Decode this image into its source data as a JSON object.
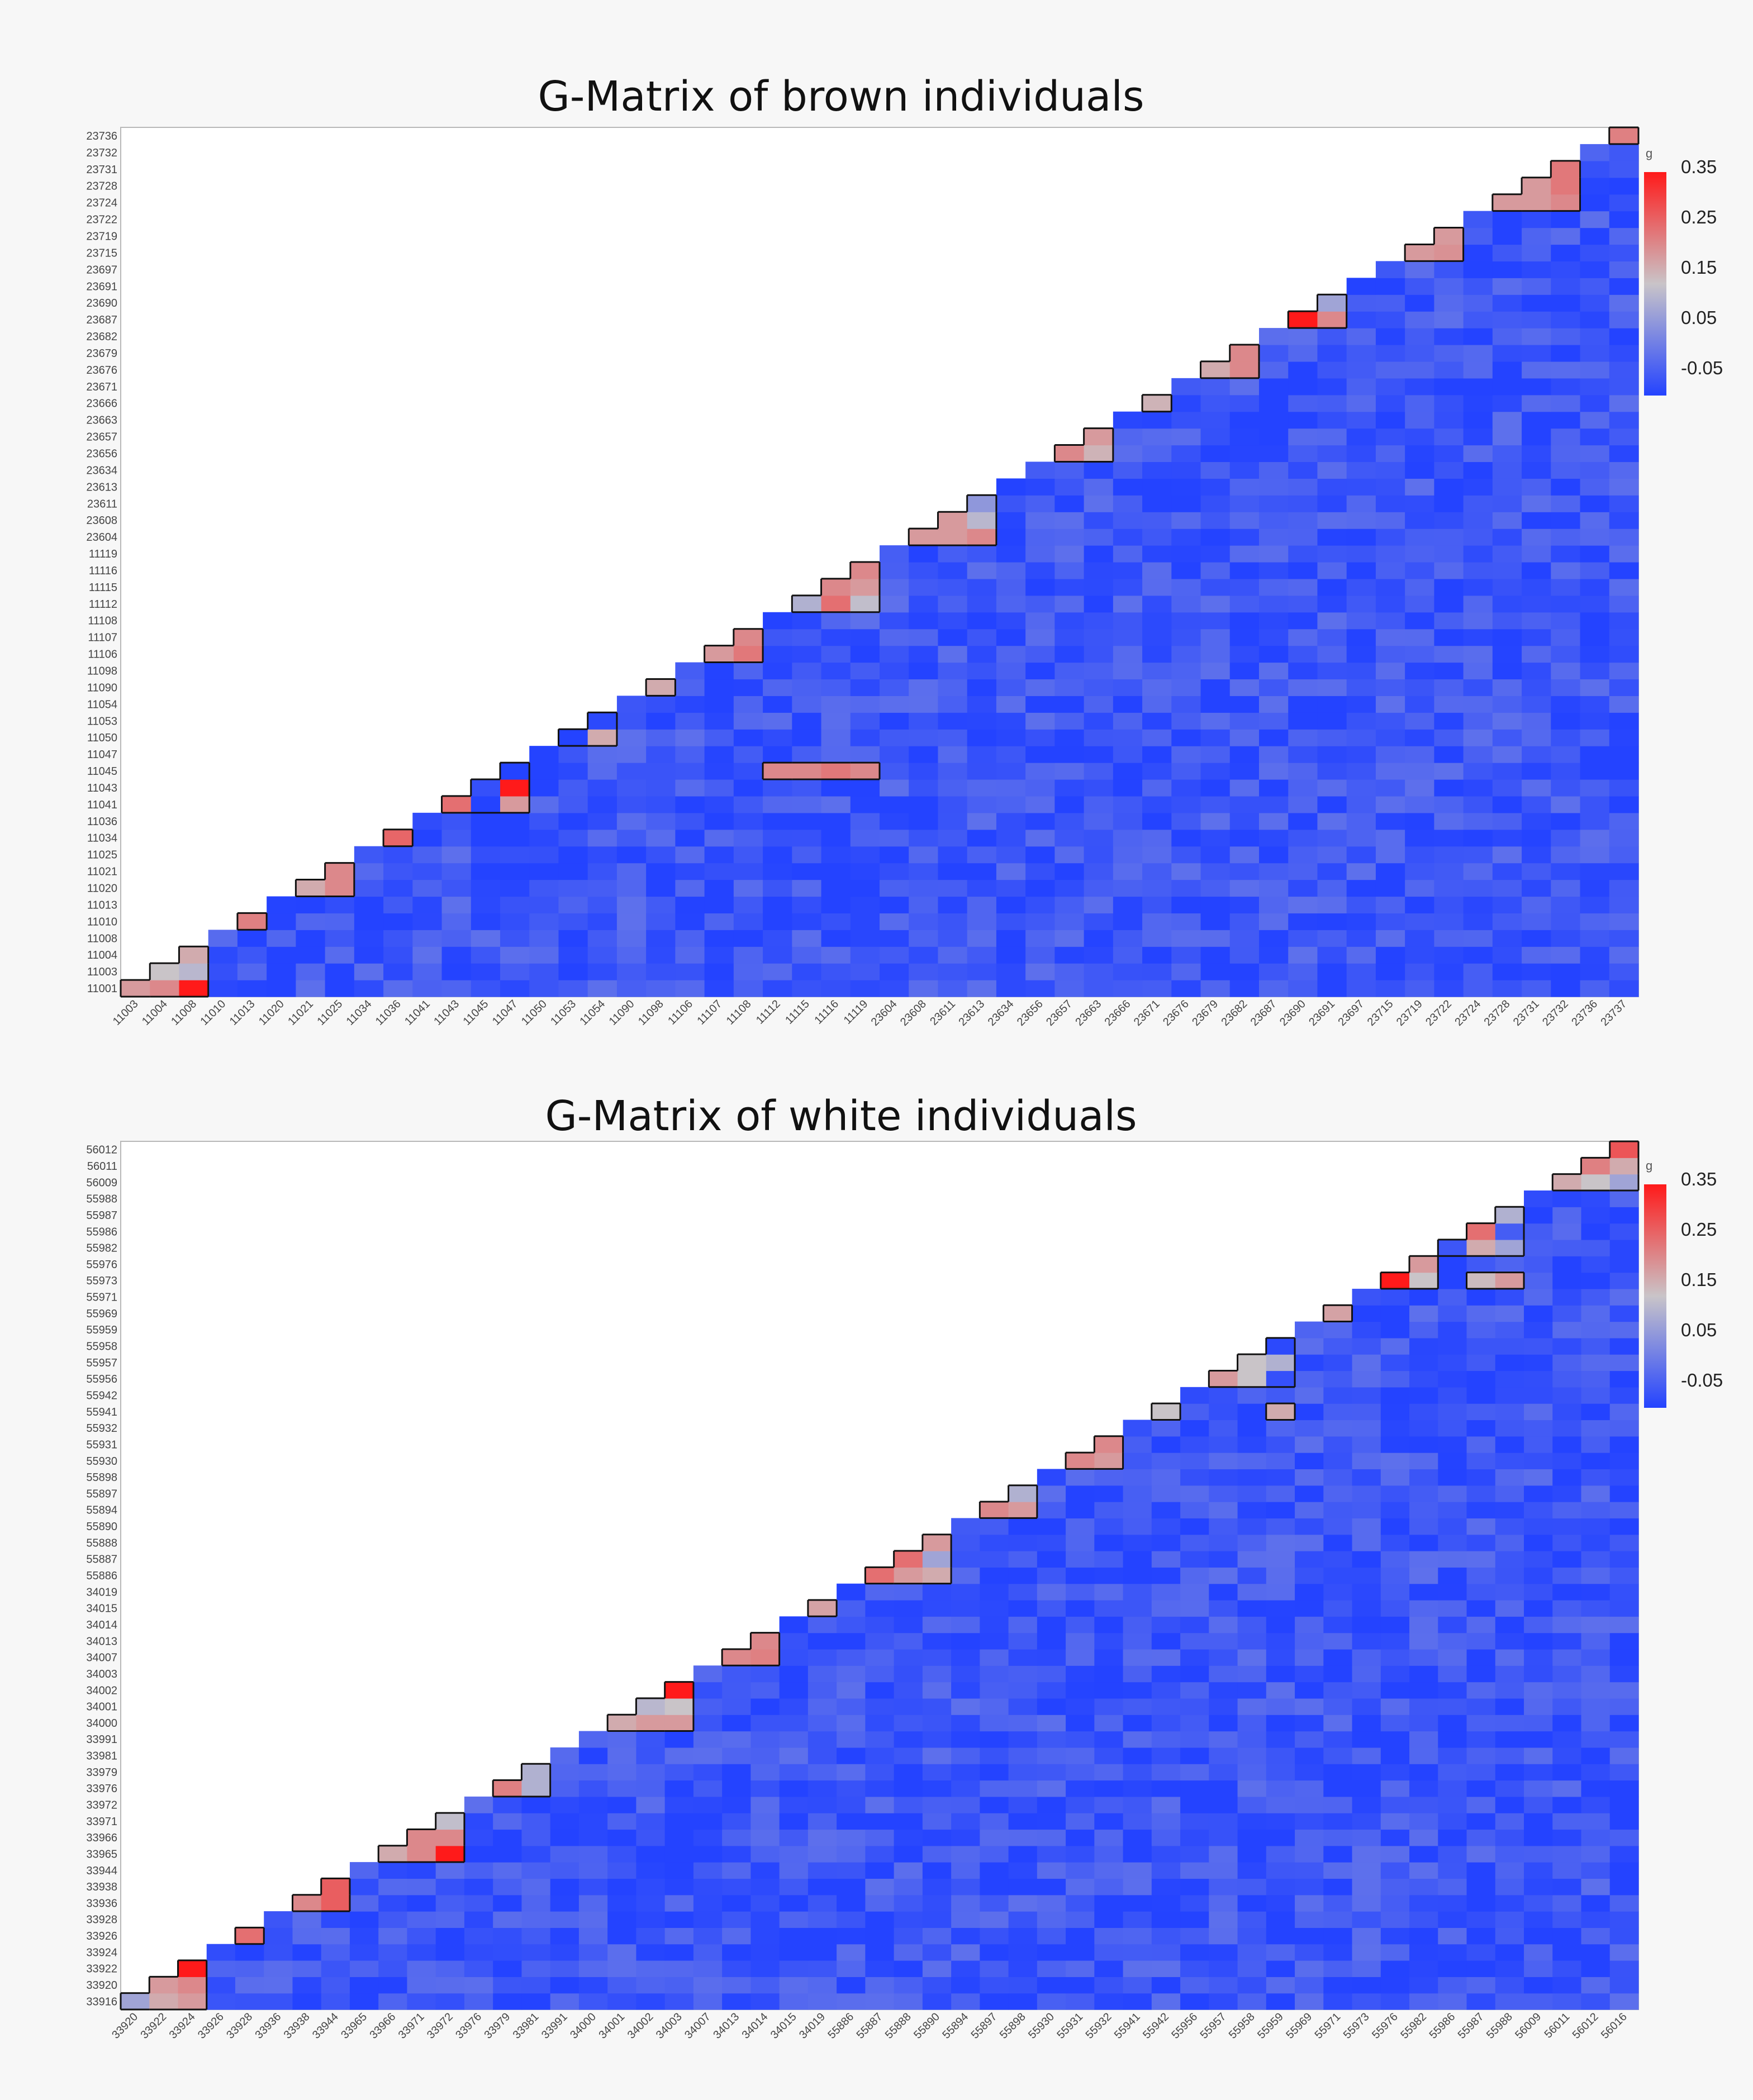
{
  "panels": [
    {
      "title": "G-Matrix of brown individuals",
      "legend": {
        "label": "g",
        "ticks": [
          "0.35",
          "0.25",
          "0.15",
          "0.05",
          "-0.05"
        ]
      },
      "y_labels": [
        "11001",
        "11003",
        "11004",
        "11008",
        "11010",
        "11013",
        "11020",
        "11021",
        "11025",
        "11034",
        "11036",
        "11041",
        "11043",
        "11045",
        "11047",
        "11050",
        "11053",
        "11054",
        "11090",
        "11098",
        "11106",
        "11107",
        "11108",
        "11112",
        "11115",
        "11116",
        "11119",
        "23604",
        "23608",
        "23611",
        "23613",
        "23634",
        "23656",
        "23657",
        "23663",
        "23666",
        "23671",
        "23676",
        "23679",
        "23682",
        "23687",
        "23690",
        "23691",
        "23697",
        "23715",
        "23719",
        "23722",
        "23724",
        "23728",
        "23731",
        "23732",
        "23736"
      ],
      "x_labels": [
        "11003",
        "11004",
        "11008",
        "11010",
        "11013",
        "11020",
        "11021",
        "11025",
        "11034",
        "11036",
        "11041",
        "11043",
        "11045",
        "11047",
        "11050",
        "11053",
        "11054",
        "11090",
        "11098",
        "11106",
        "11107",
        "11108",
        "11112",
        "11115",
        "11116",
        "11119",
        "23604",
        "23608",
        "23611",
        "23613",
        "23634",
        "23656",
        "23657",
        "23663",
        "23666",
        "23671",
        "23676",
        "23679",
        "23682",
        "23687",
        "23690",
        "23691",
        "23697",
        "23715",
        "23719",
        "23722",
        "23724",
        "23728",
        "23731",
        "23732",
        "23736",
        "23737"
      ]
    },
    {
      "title": "G-Matrix of white individuals",
      "legend": {
        "label": "g",
        "ticks": [
          "0.35",
          "0.25",
          "0.15",
          "0.05",
          "-0.05"
        ]
      },
      "y_labels": [
        "33916",
        "33920",
        "33922",
        "33924",
        "33926",
        "33928",
        "33936",
        "33938",
        "33944",
        "33965",
        "33966",
        "33971",
        "33972",
        "33976",
        "33979",
        "33981",
        "33991",
        "34000",
        "34001",
        "34002",
        "34003",
        "34007",
        "34013",
        "34014",
        "34015",
        "34019",
        "55886",
        "55887",
        "55888",
        "55890",
        "55894",
        "55897",
        "55898",
        "55930",
        "55931",
        "55932",
        "55941",
        "55942",
        "55956",
        "55957",
        "55958",
        "55959",
        "55969",
        "55971",
        "55973",
        "55976",
        "55982",
        "55986",
        "55987",
        "55988",
        "56009",
        "56011",
        "56012"
      ],
      "x_labels": [
        "33920",
        "33922",
        "33924",
        "33926",
        "33928",
        "33936",
        "33938",
        "33944",
        "33965",
        "33966",
        "33971",
        "33972",
        "33976",
        "33979",
        "33981",
        "33991",
        "34000",
        "34001",
        "34002",
        "34003",
        "34007",
        "34013",
        "34014",
        "34015",
        "34019",
        "55886",
        "55887",
        "55888",
        "55890",
        "55894",
        "55897",
        "55898",
        "55930",
        "55931",
        "55932",
        "55941",
        "55942",
        "55956",
        "55957",
        "55958",
        "55959",
        "55969",
        "55971",
        "55973",
        "55976",
        "55982",
        "55986",
        "55987",
        "55988",
        "56009",
        "56011",
        "56012",
        "56016"
      ]
    }
  ],
  "chart_data": [
    {
      "type": "heatmap",
      "title": "G-Matrix of brown individuals",
      "value_label": "g",
      "color_scale": {
        "min": -0.05,
        "max": 0.35,
        "colors": [
          "#2443ff",
          "#c9c4c8",
          "#ff1a1a"
        ]
      },
      "background_value": -0.03,
      "highlighted_cells": [
        {
          "x": "11003",
          "y": "11001",
          "v": 0.2
        },
        {
          "x": "11004",
          "y": "11001",
          "v": 0.22
        },
        {
          "x": "11008",
          "y": "11001",
          "v": 0.35
        },
        {
          "x": "11004",
          "y": "11003",
          "v": 0.15
        },
        {
          "x": "11008",
          "y": "11003",
          "v": 0.13
        },
        {
          "x": "11008",
          "y": "11004",
          "v": 0.18
        },
        {
          "x": "11013",
          "y": "11010",
          "v": 0.23
        },
        {
          "x": "11021",
          "y": "11020",
          "v": 0.18
        },
        {
          "x": "11025",
          "y": "11020",
          "v": 0.22
        },
        {
          "x": "11025",
          "y": "11021",
          "v": 0.22
        },
        {
          "x": "11036",
          "y": "11034",
          "v": 0.26
        },
        {
          "x": "11043",
          "y": "11041",
          "v": 0.25
        },
        {
          "x": "11045",
          "y": "11041",
          "v": -0.05
        },
        {
          "x": "11047",
          "y": "11041",
          "v": 0.2
        },
        {
          "x": "11045",
          "y": "11043",
          "v": -0.03
        },
        {
          "x": "11047",
          "y": "11043",
          "v": 0.35
        },
        {
          "x": "11047",
          "y": "11045",
          "v": -0.06
        },
        {
          "x": "11053",
          "y": "11050",
          "v": -0.05
        },
        {
          "x": "11054",
          "y": "11050",
          "v": 0.18
        },
        {
          "x": "11054",
          "y": "11053",
          "v": -0.04
        },
        {
          "x": "11098",
          "y": "11090",
          "v": 0.18
        },
        {
          "x": "11107",
          "y": "11106",
          "v": 0.2
        },
        {
          "x": "11108",
          "y": "11106",
          "v": 0.24
        },
        {
          "x": "11108",
          "y": "11107",
          "v": 0.22
        },
        {
          "x": "11115",
          "y": "11112",
          "v": 0.12
        },
        {
          "x": "11116",
          "y": "11112",
          "v": 0.25
        },
        {
          "x": "11119",
          "y": "11112",
          "v": 0.14
        },
        {
          "x": "11116",
          "y": "11115",
          "v": 0.22
        },
        {
          "x": "11119",
          "y": "11115",
          "v": 0.2
        },
        {
          "x": "11119",
          "y": "11116",
          "v": 0.22
        },
        {
          "x": "23608",
          "y": "23604",
          "v": 0.2
        },
        {
          "x": "23611",
          "y": "23604",
          "v": 0.2
        },
        {
          "x": "23613",
          "y": "23604",
          "v": 0.22
        },
        {
          "x": "23611",
          "y": "23608",
          "v": 0.2
        },
        {
          "x": "23613",
          "y": "23608",
          "v": 0.13
        },
        {
          "x": "23613",
          "y": "23611",
          "v": 0.08
        },
        {
          "x": "23657",
          "y": "23656",
          "v": 0.22
        },
        {
          "x": "23663",
          "y": "23656",
          "v": 0.17
        },
        {
          "x": "23663",
          "y": "23657",
          "v": 0.2
        },
        {
          "x": "23671",
          "y": "23666",
          "v": 0.17
        },
        {
          "x": "23679",
          "y": "23676",
          "v": 0.18
        },
        {
          "x": "23682",
          "y": "23676",
          "v": 0.22
        },
        {
          "x": "23682",
          "y": "23679",
          "v": 0.22
        },
        {
          "x": "23690",
          "y": "23687",
          "v": 0.37
        },
        {
          "x": "23691",
          "y": "23687",
          "v": 0.22
        },
        {
          "x": "23691",
          "y": "23690",
          "v": 0.1
        },
        {
          "x": "23719",
          "y": "23715",
          "v": 0.2
        },
        {
          "x": "23722",
          "y": "23715",
          "v": 0.21
        },
        {
          "x": "23722",
          "y": "23719",
          "v": 0.2
        },
        {
          "x": "23728",
          "y": "23724",
          "v": 0.2
        },
        {
          "x": "23731",
          "y": "23724",
          "v": 0.2
        },
        {
          "x": "23732",
          "y": "23724",
          "v": 0.22
        },
        {
          "x": "23731",
          "y": "23728",
          "v": 0.2
        },
        {
          "x": "23732",
          "y": "23728",
          "v": 0.24
        },
        {
          "x": "23732",
          "y": "23731",
          "v": 0.24
        },
        {
          "x": "23737",
          "y": "23736",
          "v": 0.23
        },
        {
          "x": "11112",
          "y": "11045",
          "v": 0.22
        },
        {
          "x": "11115",
          "y": "11045",
          "v": 0.22
        },
        {
          "x": "11116",
          "y": "11045",
          "v": 0.24
        },
        {
          "x": "11119",
          "y": "11045",
          "v": 0.22
        }
      ]
    },
    {
      "type": "heatmap",
      "title": "G-Matrix of white individuals",
      "value_label": "g",
      "color_scale": {
        "min": -0.05,
        "max": 0.35,
        "colors": [
          "#2443ff",
          "#c9c4c8",
          "#ff1a1a"
        ]
      },
      "background_value": -0.03,
      "highlighted_cells": [
        {
          "x": "33920",
          "y": "33916",
          "v": 0.1
        },
        {
          "x": "33922",
          "y": "33916",
          "v": 0.18
        },
        {
          "x": "33924",
          "y": "33916",
          "v": 0.2
        },
        {
          "x": "33922",
          "y": "33920",
          "v": 0.2
        },
        {
          "x": "33924",
          "y": "33920",
          "v": 0.22
        },
        {
          "x": "33924",
          "y": "33922",
          "v": 0.35
        },
        {
          "x": "33928",
          "y": "33926",
          "v": 0.25
        },
        {
          "x": "33938",
          "y": "33936",
          "v": 0.22
        },
        {
          "x": "33944",
          "y": "33936",
          "v": 0.27
        },
        {
          "x": "33944",
          "y": "33938",
          "v": 0.27
        },
        {
          "x": "33966",
          "y": "33965",
          "v": 0.18
        },
        {
          "x": "33971",
          "y": "33965",
          "v": 0.22
        },
        {
          "x": "33972",
          "y": "33965",
          "v": 0.35
        },
        {
          "x": "33971",
          "y": "33966",
          "v": 0.22
        },
        {
          "x": "33972",
          "y": "33966",
          "v": 0.22
        },
        {
          "x": "33972",
          "y": "33971",
          "v": 0.14
        },
        {
          "x": "33979",
          "y": "33976",
          "v": 0.23
        },
        {
          "x": "33981",
          "y": "33976",
          "v": 0.12
        },
        {
          "x": "33981",
          "y": "33979",
          "v": 0.12
        },
        {
          "x": "34001",
          "y": "34000",
          "v": 0.18
        },
        {
          "x": "34002",
          "y": "34000",
          "v": 0.2
        },
        {
          "x": "34003",
          "y": "34000",
          "v": 0.2
        },
        {
          "x": "34002",
          "y": "34001",
          "v": 0.13
        },
        {
          "x": "34003",
          "y": "34001",
          "v": 0.15
        },
        {
          "x": "34003",
          "y": "34002",
          "v": 0.35
        },
        {
          "x": "34013",
          "y": "34007",
          "v": 0.22
        },
        {
          "x": "34014",
          "y": "34007",
          "v": 0.23
        },
        {
          "x": "34014",
          "y": "34013",
          "v": 0.22
        },
        {
          "x": "34019",
          "y": "34015",
          "v": 0.19
        },
        {
          "x": "55887",
          "y": "55886",
          "v": 0.25
        },
        {
          "x": "55888",
          "y": "55886",
          "v": 0.2
        },
        {
          "x": "55890",
          "y": "55886",
          "v": 0.18
        },
        {
          "x": "55888",
          "y": "55887",
          "v": 0.25
        },
        {
          "x": "55890",
          "y": "55887",
          "v": 0.1
        },
        {
          "x": "55890",
          "y": "55888",
          "v": 0.2
        },
        {
          "x": "55897",
          "y": "55894",
          "v": 0.22
        },
        {
          "x": "55898",
          "y": "55894",
          "v": 0.2
        },
        {
          "x": "55898",
          "y": "55897",
          "v": 0.12
        },
        {
          "x": "55931",
          "y": "55930",
          "v": 0.22
        },
        {
          "x": "55932",
          "y": "55930",
          "v": 0.2
        },
        {
          "x": "55932",
          "y": "55931",
          "v": 0.22
        },
        {
          "x": "55942",
          "y": "55941",
          "v": 0.15
        },
        {
          "x": "55957",
          "y": "55956",
          "v": 0.2
        },
        {
          "x": "55958",
          "y": "55956",
          "v": 0.15
        },
        {
          "x": "55959",
          "y": "55956",
          "v": -0.03
        },
        {
          "x": "55958",
          "y": "55957",
          "v": 0.15
        },
        {
          "x": "55959",
          "y": "55957",
          "v": 0.12
        },
        {
          "x": "55959",
          "y": "55958",
          "v": -0.04
        },
        {
          "x": "55971",
          "y": "55969",
          "v": 0.19
        },
        {
          "x": "55976",
          "y": "55973",
          "v": 0.37
        },
        {
          "x": "55982",
          "y": "55976",
          "v": 0.2
        },
        {
          "x": "55986",
          "y": "55982",
          "v": -0.02
        },
        {
          "x": "55987",
          "y": "55982",
          "v": 0.18
        },
        {
          "x": "55988",
          "y": "55982",
          "v": 0.1
        },
        {
          "x": "55987",
          "y": "55986",
          "v": 0.25
        },
        {
          "x": "55988",
          "y": "55986",
          "v": -0.01
        },
        {
          "x": "55988",
          "y": "55987",
          "v": 0.12
        },
        {
          "x": "56011",
          "y": "56009",
          "v": 0.18
        },
        {
          "x": "56012",
          "y": "56009",
          "v": 0.15
        },
        {
          "x": "56016",
          "y": "56009",
          "v": 0.1
        },
        {
          "x": "56012",
          "y": "56011",
          "v": 0.23
        },
        {
          "x": "56016",
          "y": "56011",
          "v": 0.18
        },
        {
          "x": "56016",
          "y": "56012",
          "v": 0.28
        },
        {
          "x": "55959",
          "y": "55941",
          "v": 0.18
        },
        {
          "x": "55982",
          "y": "55973",
          "v": 0.15
        },
        {
          "x": "55987",
          "y": "55973",
          "v": 0.16
        },
        {
          "x": "55988",
          "y": "55973",
          "v": 0.2
        }
      ]
    }
  ]
}
